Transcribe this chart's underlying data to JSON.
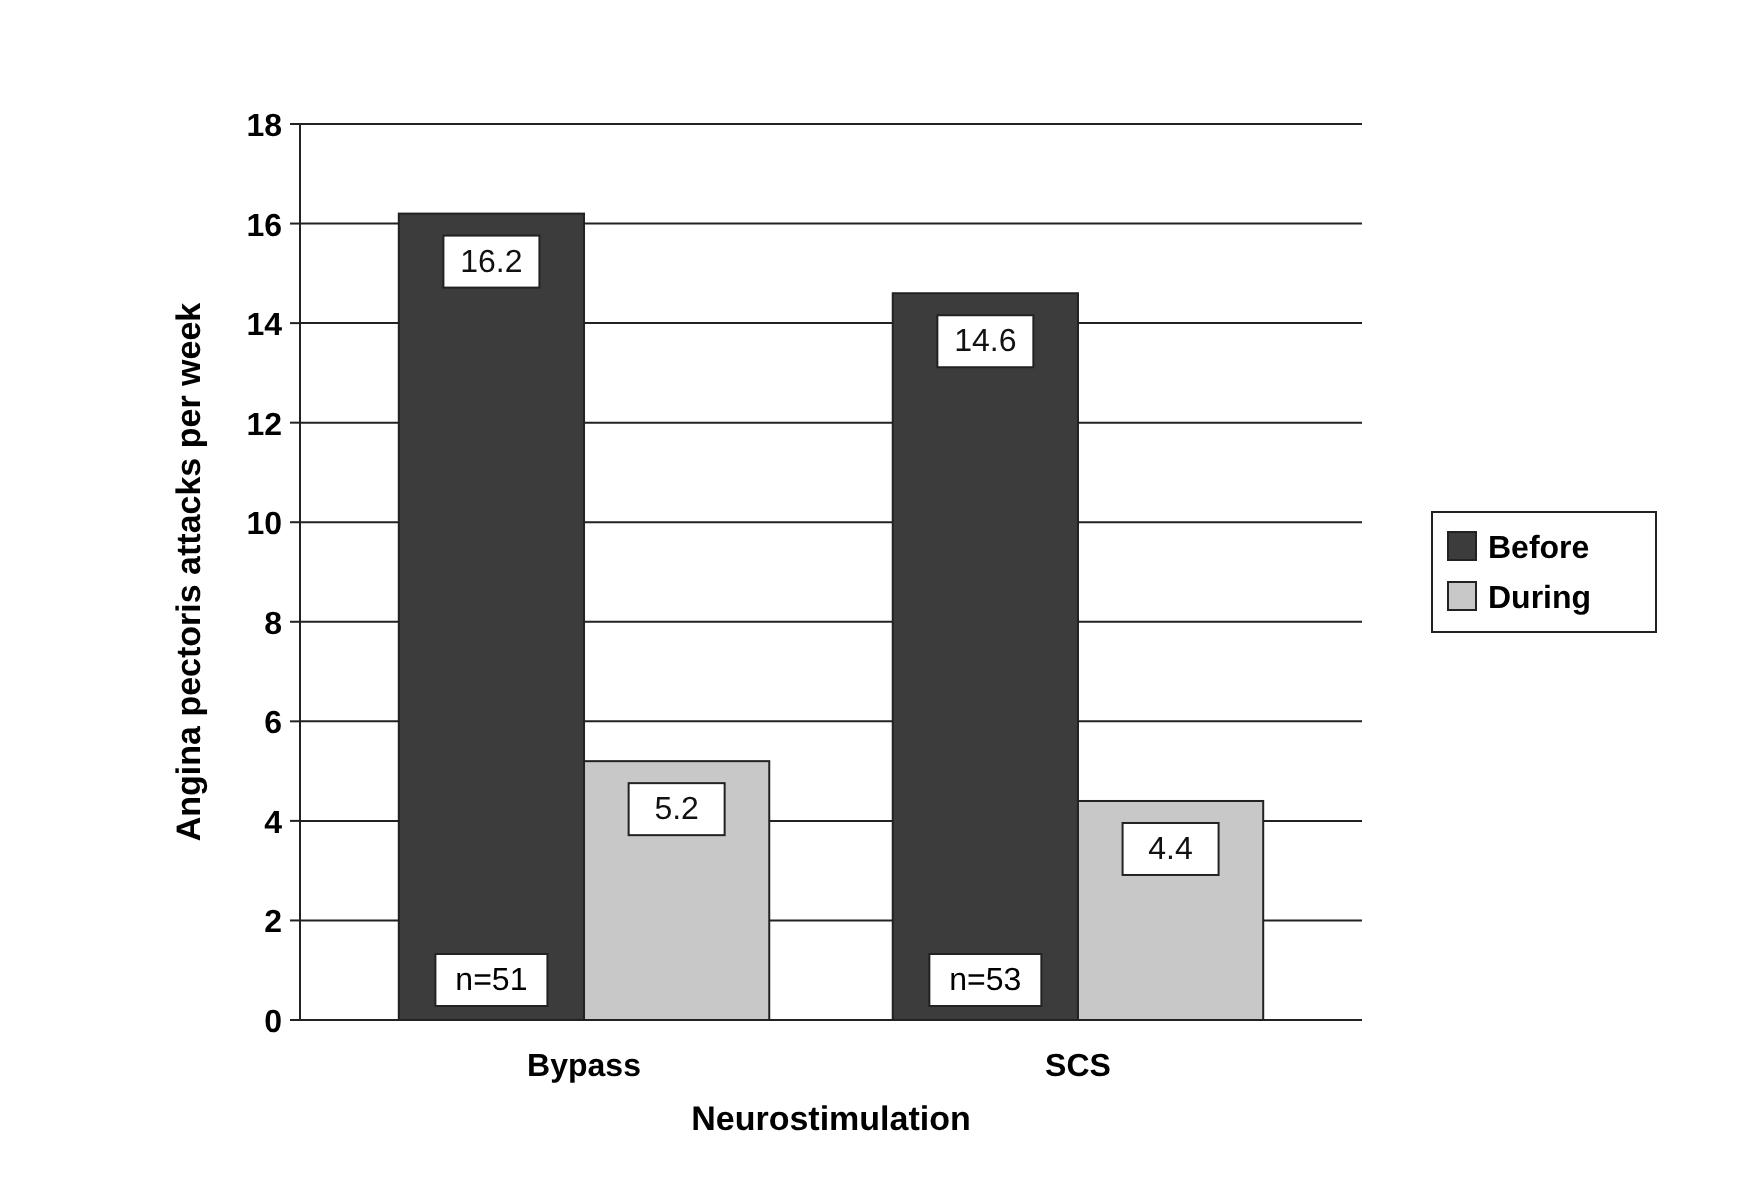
{
  "chart_data": {
    "type": "bar",
    "xlabel": "Neurostimulation",
    "ylabel": "Angina pectoris attacks per week",
    "categories": [
      "Bypass",
      "SCS"
    ],
    "series": [
      {
        "name": "Before",
        "color": "#3c3c3c",
        "values": [
          16.2,
          14.6
        ]
      },
      {
        "name": "During",
        "color": "#c8c8c8",
        "values": [
          5.2,
          4.4
        ]
      }
    ],
    "ylim": [
      0,
      18
    ],
    "yticks": [
      0,
      2,
      4,
      6,
      8,
      10,
      12,
      14,
      16,
      18
    ],
    "grid": "y",
    "legend": "right",
    "data_labels": true,
    "annotations": [
      {
        "text": "n=51",
        "x": "Bypass",
        "y": 0
      },
      {
        "text": "n=53",
        "x": "SCS",
        "y": 0
      }
    ]
  }
}
